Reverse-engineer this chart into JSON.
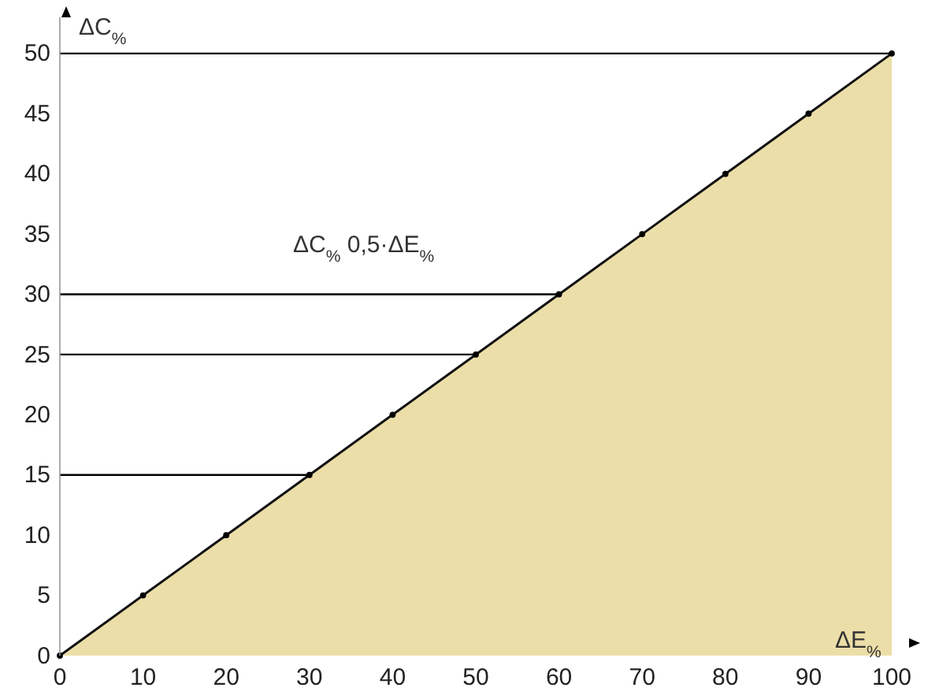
{
  "chart_data": {
    "type": "area",
    "xlabel": "ΔE$_{%}$",
    "ylabel": "ΔC$_{%}$",
    "annotations": [
      "ΔC$_{%}$   0,5·ΔE$_{%}$"
    ],
    "x": [
      0,
      10,
      20,
      30,
      40,
      50,
      60,
      70,
      80,
      90,
      100
    ],
    "series": [
      {
        "color": "#ecdea8",
        "values": [
          0,
          5,
          10,
          15,
          20,
          25,
          30,
          35,
          40,
          45,
          50
        ]
      }
    ],
    "xlim": [
      0,
      100
    ],
    "ylim": [
      0,
      53
    ],
    "xticks": [
      0,
      10,
      20,
      30,
      40,
      50,
      60,
      70,
      80,
      90,
      100
    ],
    "yticks": [
      0,
      5,
      10,
      15,
      20,
      25,
      30,
      35,
      40,
      45,
      50
    ],
    "ref_lines": [
      {
        "axis": "y",
        "value": 15,
        "color": "#000000"
      },
      {
        "axis": "y",
        "value": 25,
        "color": "#000000"
      },
      {
        "axis": "y",
        "value": 30,
        "color": "#000000"
      },
      {
        "axis": "y",
        "value": 50,
        "color": "#000000"
      }
    ],
    "marker": "circle",
    "grid": false
  }
}
